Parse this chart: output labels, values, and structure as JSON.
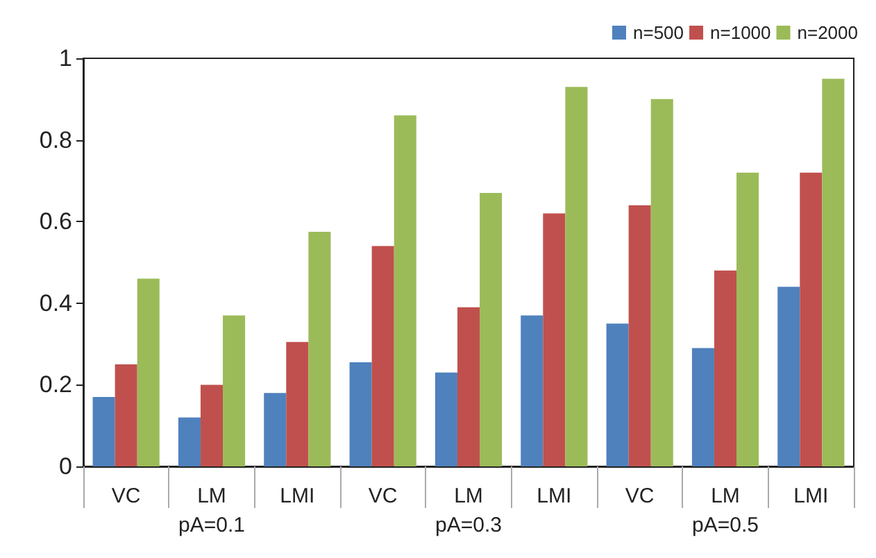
{
  "chart_data": {
    "type": "bar",
    "categories": [
      "VC",
      "LM",
      "LMI",
      "VC",
      "LM",
      "LMI",
      "VC",
      "LM",
      "LMI"
    ],
    "series": [
      {
        "name": "n=500",
        "color": "#4f81bd",
        "values": [
          0.17,
          0.12,
          0.18,
          0.255,
          0.23,
          0.37,
          0.35,
          0.29,
          0.44
        ]
      },
      {
        "name": "n=1000",
        "color": "#c0504d",
        "values": [
          0.25,
          0.2,
          0.305,
          0.54,
          0.39,
          0.62,
          0.64,
          0.48,
          0.72
        ]
      },
      {
        "name": "n=2000",
        "color": "#9bbb59",
        "values": [
          0.46,
          0.37,
          0.575,
          0.86,
          0.67,
          0.93,
          0.9,
          0.72,
          0.95
        ]
      }
    ],
    "ylim": [
      0,
      1
    ],
    "yticks": [
      0,
      0.2,
      0.4,
      0.6,
      0.8,
      1
    ],
    "annotations": [
      "pA=0.1",
      "pA=0.3",
      "pA=0.5"
    ],
    "grid": false,
    "legend": "top right"
  }
}
